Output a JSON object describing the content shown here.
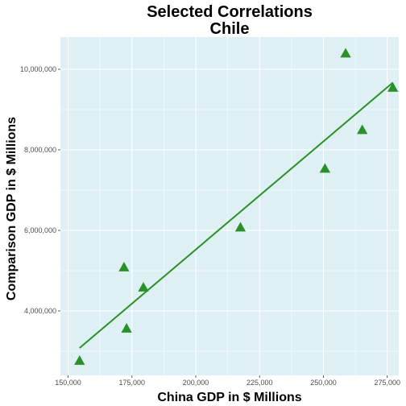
{
  "chart_data": {
    "type": "scatter",
    "title": "Selected Correlations",
    "subtitle": "Chile",
    "xlabel": "China GDP in $ Millions",
    "ylabel": "Comparison GDP in $ Millions",
    "xlim": [
      147000,
      279500
    ],
    "ylim": [
      2400000,
      10800000
    ],
    "xticks": [
      150000,
      175000,
      200000,
      225000,
      250000,
      275000
    ],
    "xtick_labels": [
      "150,000",
      "175,000",
      "200,000",
      "225,000",
      "250,000",
      "275,000"
    ],
    "yticks": [
      4000000,
      6000000,
      8000000,
      10000000
    ],
    "ytick_labels": [
      "4,000,000",
      "6,000,000",
      "8,000,000",
      "10,000,000"
    ],
    "grid": true,
    "marker": "triangle",
    "points": [
      {
        "x": 154500,
        "y": 2760000
      },
      {
        "x": 171900,
        "y": 5080000
      },
      {
        "x": 172900,
        "y": 3560000
      },
      {
        "x": 179500,
        "y": 4580000
      },
      {
        "x": 217500,
        "y": 6070000
      },
      {
        "x": 250600,
        "y": 7530000
      },
      {
        "x": 258700,
        "y": 10390000
      },
      {
        "x": 265200,
        "y": 8490000
      },
      {
        "x": 277200,
        "y": 9540000
      }
    ],
    "fit_line": {
      "x": [
        154500,
        277200
      ],
      "y": [
        3080000,
        9670000
      ]
    },
    "colors": {
      "panel": "#dff0f5",
      "grid": "#ffffff",
      "series": "#2a9128"
    }
  }
}
